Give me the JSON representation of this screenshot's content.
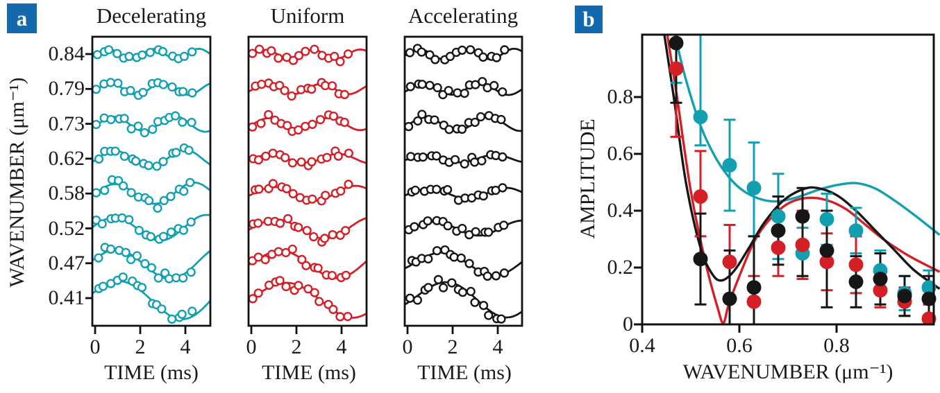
{
  "figure": {
    "panel_a_label": "a",
    "panel_b_label": "b",
    "badge_color": "#1668ad",
    "text_color": "#1a1a1a",
    "background": "#ffffff"
  },
  "chart_data": [
    {
      "type": "line",
      "panel": "a",
      "xlabel": "TIME (ms)",
      "ylabel": "WAVENUMBER (μm⁻¹)",
      "x_ticks": [
        "0",
        "2",
        "4"
      ],
      "x_tick_values": [
        0,
        2,
        4
      ],
      "t_range": [
        0,
        5.05
      ],
      "wavenumbers": [
        "0.84",
        "0.79",
        "0.73",
        "0.62",
        "0.58",
        "0.52",
        "0.47",
        "0.41"
      ],
      "columns": [
        {
          "name": "Decelerating",
          "color": "#12a0b1",
          "seed": 11,
          "rows": [
            {
              "wavenumber": "0.84",
              "amp": 7,
              "period": 2.0,
              "t0": 0.1,
              "grow": 0.02
            },
            {
              "wavenumber": "0.79",
              "amp": 8,
              "period": 2.3,
              "t0": 0.1,
              "grow": 0.02
            },
            {
              "wavenumber": "0.73",
              "amp": 10,
              "period": 2.7,
              "t0": 0.15,
              "grow": 0.03
            },
            {
              "wavenumber": "0.62",
              "amp": 11,
              "period": 3.1,
              "t0": 0.1,
              "grow": 0.04
            },
            {
              "wavenumber": "0.58",
              "amp": 13,
              "period": 3.5,
              "t0": 0.0,
              "grow": 0.05
            },
            {
              "wavenumber": "0.52",
              "amp": 15,
              "period": 4.1,
              "t0": -0.2,
              "grow": 0.06
            },
            {
              "wavenumber": "0.47",
              "amp": 18,
              "period": 4.8,
              "t0": -0.3,
              "grow": 0.08
            },
            {
              "wavenumber": "0.41",
              "amp": 22,
              "period": 5.6,
              "t0": -0.4,
              "grow": 0.1
            }
          ]
        },
        {
          "name": "Uniform",
          "color": "#d41f26",
          "seed": 23,
          "rows": [
            {
              "wavenumber": "0.84",
              "amp": 6,
              "period": 2.1,
              "t0": 0.1,
              "grow": 0.02
            },
            {
              "wavenumber": "0.79",
              "amp": 7,
              "period": 2.4,
              "t0": 0.1,
              "grow": 0.02
            },
            {
              "wavenumber": "0.73",
              "amp": 8,
              "period": 2.7,
              "t0": 0.1,
              "grow": 0.03
            },
            {
              "wavenumber": "0.62",
              "amp": 6,
              "period": 3.0,
              "t0": 0.1,
              "grow": 0.04
            },
            {
              "wavenumber": "0.58",
              "amp": 9,
              "period": 3.6,
              "t0": 0.1,
              "grow": 0.05
            },
            {
              "wavenumber": "0.52",
              "amp": 12,
              "period": 4.3,
              "t0": 0.0,
              "grow": 0.07
            },
            {
              "wavenumber": "0.47",
              "amp": 16,
              "period": 5.0,
              "t0": 0.0,
              "grow": 0.09
            },
            {
              "wavenumber": "0.41",
              "amp": 19,
              "period": 5.9,
              "t0": 0.0,
              "grow": 0.11
            }
          ]
        },
        {
          "name": "Accelerating",
          "color": "#161616",
          "seed": 37,
          "rows": [
            {
              "wavenumber": "0.84",
              "amp": 7,
              "period": 2.1,
              "t0": 0.0,
              "grow": 0.02
            },
            {
              "wavenumber": "0.79",
              "amp": 8,
              "period": 2.5,
              "t0": 0.1,
              "grow": 0.02
            },
            {
              "wavenumber": "0.73",
              "amp": 9,
              "period": 2.8,
              "t0": 0.1,
              "grow": 0.03
            },
            {
              "wavenumber": "0.62",
              "amp": 5,
              "period": 3.0,
              "t0": 0.1,
              "grow": 0.03
            },
            {
              "wavenumber": "0.58",
              "amp": 7,
              "period": 3.4,
              "t0": 0.1,
              "grow": 0.04
            },
            {
              "wavenumber": "0.52",
              "amp": 9,
              "period": 3.9,
              "t0": 0.2,
              "grow": 0.05
            },
            {
              "wavenumber": "0.47",
              "amp": 14,
              "period": 4.7,
              "t0": 0.3,
              "grow": 0.07
            },
            {
              "wavenumber": "0.41",
              "amp": 20,
              "period": 5.4,
              "t0": 0.3,
              "grow": 0.09
            }
          ]
        }
      ]
    },
    {
      "type": "scatter",
      "panel": "b",
      "xlabel": "WAVENUMBER (μm⁻¹)",
      "ylabel": "AMPLITUDE",
      "xlim": [
        0.4,
        1.0
      ],
      "ylim": [
        0,
        1.02
      ],
      "x_ticks": [
        "0.4",
        "0.6",
        "0.8"
      ],
      "x_tick_values": [
        0.4,
        0.6,
        0.8
      ],
      "y_ticks": [
        "0",
        "0.2",
        "0.4",
        "0.6",
        "0.8"
      ],
      "y_tick_values": [
        0,
        0.2,
        0.4,
        0.6,
        0.8
      ],
      "grid": false,
      "legend": false,
      "series": [
        {
          "name": "Decelerating",
          "color": "#12a0b1",
          "x": [
            0.47,
            0.52,
            0.58,
            0.63,
            0.68,
            0.73,
            0.78,
            0.84,
            0.89,
            0.94,
            0.99
          ],
          "y": [
            1.04,
            0.73,
            0.56,
            0.48,
            0.38,
            0.25,
            0.37,
            0.33,
            0.19,
            0.11,
            0.13
          ],
          "err_lo": [
            0.19,
            0.1,
            0.16,
            0.17,
            0.15,
            0.09,
            0.09,
            0.08,
            0.07,
            0.06,
            0.06
          ],
          "err_hi": [
            0.19,
            0.3,
            0.16,
            0.16,
            0.15,
            0.09,
            0.09,
            0.08,
            0.07,
            0.06,
            0.06
          ],
          "curve": [
            [
              0.462,
              1.06
            ],
            [
              0.487,
              0.88
            ],
            [
              0.52,
              0.7
            ],
            [
              0.55,
              0.59
            ],
            [
              0.58,
              0.515
            ],
            [
              0.61,
              0.468
            ],
            [
              0.645,
              0.44
            ],
            [
              0.68,
              0.433
            ],
            [
              0.72,
              0.448
            ],
            [
              0.76,
              0.472
            ],
            [
              0.8,
              0.49
            ],
            [
              0.84,
              0.497
            ],
            [
              0.88,
              0.478
            ],
            [
              0.92,
              0.435
            ],
            [
              0.96,
              0.385
            ],
            [
              1.012,
              0.315
            ]
          ]
        },
        {
          "name": "Uniform",
          "color": "#d41f26",
          "x": [
            0.47,
            0.52,
            0.58,
            0.63,
            0.68,
            0.73,
            0.78,
            0.84,
            0.89,
            0.94,
            0.99
          ],
          "y": [
            0.9,
            0.45,
            0.22,
            0.08,
            0.27,
            0.28,
            0.22,
            0.21,
            0.12,
            0.08,
            0.02
          ],
          "err_lo": [
            0.24,
            0.14,
            0.22,
            0.08,
            0.1,
            0.12,
            0.1,
            0.1,
            0.06,
            0.05,
            0.05
          ],
          "err_hi": [
            0.24,
            0.16,
            0.13,
            0.09,
            0.1,
            0.12,
            0.1,
            0.1,
            0.06,
            0.05,
            0.05
          ],
          "curve": [
            [
              0.448,
              1.06
            ],
            [
              0.47,
              0.82
            ],
            [
              0.5,
              0.47
            ],
            [
              0.53,
              0.22
            ],
            [
              0.555,
              0.06
            ],
            [
              0.567,
              0.005
            ],
            [
              0.578,
              0.07
            ],
            [
              0.6,
              0.17
            ],
            [
              0.63,
              0.29
            ],
            [
              0.66,
              0.365
            ],
            [
              0.7,
              0.425
            ],
            [
              0.74,
              0.445
            ],
            [
              0.78,
              0.437
            ],
            [
              0.82,
              0.405
            ],
            [
              0.86,
              0.35
            ],
            [
              0.9,
              0.295
            ],
            [
              0.95,
              0.24
            ],
            [
              1.012,
              0.185
            ]
          ]
        },
        {
          "name": "Accelerating",
          "color": "#161616",
          "x": [
            0.47,
            0.52,
            0.58,
            0.63,
            0.68,
            0.73,
            0.78,
            0.84,
            0.89,
            0.94,
            0.99
          ],
          "y": [
            0.99,
            0.23,
            0.09,
            0.13,
            0.33,
            0.38,
            0.26,
            0.15,
            0.16,
            0.1,
            0.09
          ],
          "err_lo": [
            0.21,
            0.16,
            0.1,
            0.14,
            0.12,
            0.21,
            0.2,
            0.09,
            0.09,
            0.07,
            0.08
          ],
          "err_hi": [
            0.21,
            0.16,
            0.17,
            0.18,
            0.12,
            0.1,
            0.14,
            0.09,
            0.09,
            0.07,
            0.08
          ],
          "curve": [
            [
              0.442,
              1.06
            ],
            [
              0.465,
              0.8
            ],
            [
              0.49,
              0.5
            ],
            [
              0.52,
              0.27
            ],
            [
              0.545,
              0.175
            ],
            [
              0.565,
              0.155
            ],
            [
              0.59,
              0.19
            ],
            [
              0.62,
              0.27
            ],
            [
              0.65,
              0.355
            ],
            [
              0.69,
              0.435
            ],
            [
              0.73,
              0.475
            ],
            [
              0.76,
              0.48
            ],
            [
              0.8,
              0.455
            ],
            [
              0.84,
              0.4
            ],
            [
              0.88,
              0.33
            ],
            [
              0.92,
              0.26
            ],
            [
              0.96,
              0.19
            ],
            [
              1.012,
              0.125
            ]
          ]
        }
      ]
    }
  ]
}
